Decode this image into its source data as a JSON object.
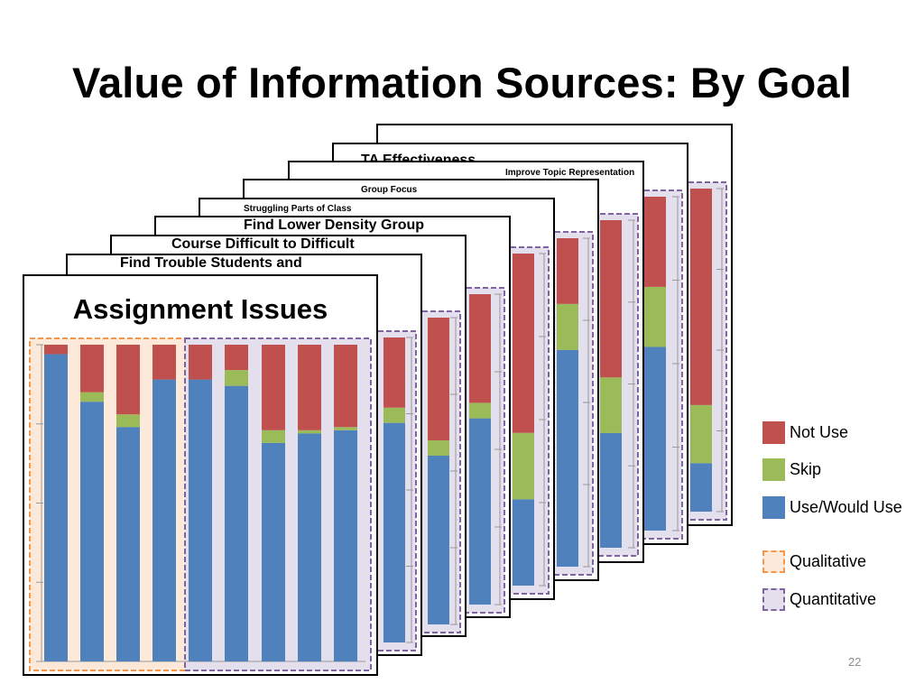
{
  "slide": {
    "title": "Value of Information Sources: By Goal",
    "page_number": "22"
  },
  "colors": {
    "not_use": "#c0504d",
    "skip": "#9bbb59",
    "use": "#4f81bd",
    "qualitative_fill": "#fde9d9",
    "qualitative_border": "#f79646",
    "quantitative_fill": "#e4dfec",
    "quantitative_border": "#8064a2"
  },
  "legend": {
    "not_use": "Not Use",
    "skip": "Skip",
    "use": "Use/Would Use",
    "qualitative": "Qualitative",
    "quantitative": "Quantitative"
  },
  "chart_data": [
    {
      "type": "bar",
      "title": "Assignment Issues",
      "series": [
        {
          "name": "Use/Would Use",
          "values": [
            97,
            82,
            74,
            89,
            89,
            87,
            69,
            72,
            73
          ]
        },
        {
          "name": "Skip",
          "values": [
            0,
            3,
            4,
            0,
            0,
            5,
            4,
            1,
            1
          ]
        },
        {
          "name": "Not Use",
          "values": [
            3,
            15,
            22,
            11,
            11,
            8,
            27,
            27,
            26
          ]
        }
      ],
      "qualitative_bars": 4,
      "quantitative_bars": 5,
      "ylim": [
        0,
        100
      ]
    },
    {
      "type": "bar",
      "title": "Find Trouble Students and",
      "ylim": [
        0,
        100
      ],
      "series": []
    },
    {
      "type": "bar",
      "title": "Course Difficult to Difficult",
      "ylim": [
        0,
        100
      ],
      "series": []
    },
    {
      "type": "bar",
      "title": "Find Lower Density Group",
      "ylim": [
        0,
        100
      ],
      "series": []
    },
    {
      "type": "bar",
      "title": "Struggling Parts of Class",
      "ylim": [
        0,
        100
      ],
      "series": []
    },
    {
      "type": "bar",
      "title": "Group Focus",
      "ylim": [
        0,
        100
      ],
      "series": []
    },
    {
      "type": "bar",
      "title": "Improve Topic Representation",
      "ylim": [
        0,
        100
      ],
      "series": []
    },
    {
      "type": "bar",
      "title": "TA Effectiveness",
      "ylim": [
        0,
        100
      ],
      "series": []
    }
  ]
}
